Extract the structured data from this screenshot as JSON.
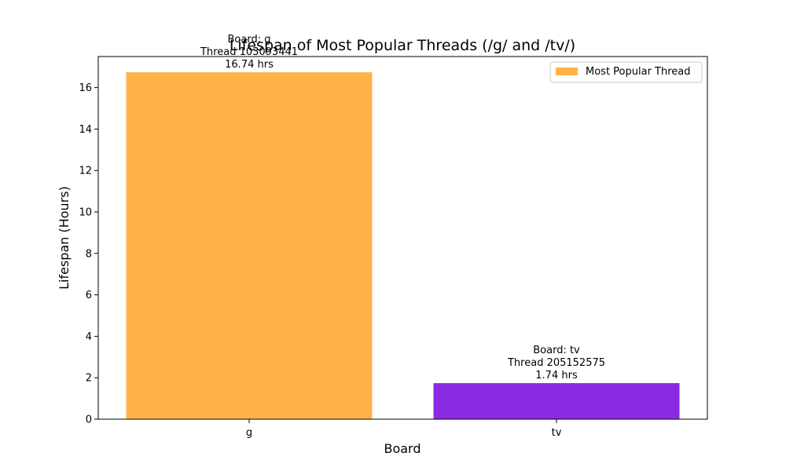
{
  "chart_data": {
    "type": "bar",
    "title": "Lifespan of Most Popular Threads (/g/ and /tv/)",
    "xlabel": "Board",
    "ylabel": "Lifespan (Hours)",
    "categories": [
      "g",
      "tv"
    ],
    "values": [
      16.74,
      1.74
    ],
    "bar_colors": [
      "#ffb347",
      "#8a2be2"
    ],
    "bar_labels": [
      [
        "Board: g",
        "Thread 103093441",
        "16.74 hrs"
      ],
      [
        "Board: tv",
        "Thread 205152575",
        "1.74 hrs"
      ]
    ],
    "ylim": [
      0,
      17.5
    ],
    "yticks": [
      0,
      2,
      4,
      6,
      8,
      10,
      12,
      14,
      16
    ],
    "grid": false,
    "legend": {
      "position": "top-right",
      "entries": [
        {
          "label": "Most Popular Thread",
          "color": "#ffb347"
        }
      ]
    }
  }
}
